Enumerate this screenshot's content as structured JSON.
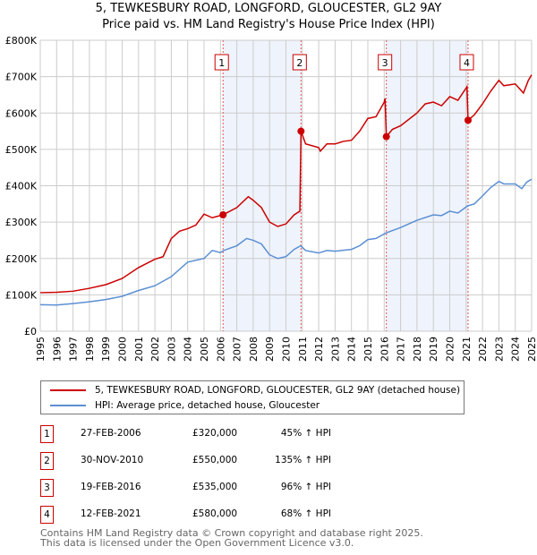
{
  "chart_data": {
    "type": "line",
    "title": "5, TEWKESBURY ROAD, LONGFORD, GLOUCESTER, GL2 9AY",
    "subtitle": "Price paid vs. HM Land Registry's House Price Index (HPI)",
    "xlim": [
      1995,
      2025
    ],
    "ylim": [
      0,
      800000
    ],
    "x_ticks": [
      "1995",
      "1996",
      "1997",
      "1998",
      "1999",
      "2000",
      "2001",
      "2002",
      "2003",
      "2004",
      "2005",
      "2006",
      "2007",
      "2008",
      "2009",
      "2010",
      "2011",
      "2012",
      "2013",
      "2014",
      "2015",
      "2016",
      "2017",
      "2018",
      "2019",
      "2020",
      "2021",
      "2022",
      "2023",
      "2024",
      "2025"
    ],
    "y_ticks": [
      {
        "v": 0,
        "l": "£0"
      },
      {
        "v": 100000,
        "l": "£100K"
      },
      {
        "v": 200000,
        "l": "£200K"
      },
      {
        "v": 300000,
        "l": "£300K"
      },
      {
        "v": 400000,
        "l": "£400K"
      },
      {
        "v": 500000,
        "l": "£500K"
      },
      {
        "v": 600000,
        "l": "£600K"
      },
      {
        "v": 700000,
        "l": "£700K"
      },
      {
        "v": 800000,
        "l": "£800K"
      }
    ],
    "grid": true,
    "series": [
      {
        "name": "5, TEWKESBURY ROAD, LONGFORD, GLOUCESTER, GL2 9AY (detached house)",
        "color": "#cc0000",
        "x": [
          1995,
          1996,
          1997,
          1998,
          1999,
          2000,
          2001,
          2002,
          2002.5,
          2003,
          2003.5,
          2004,
          2004.5,
          2005,
          2005.5,
          2006.15,
          2007,
          2007.7,
          2008,
          2008.5,
          2009,
          2009.5,
          2010,
          2010.5,
          2010.85,
          2010.92,
          2011.2,
          2012,
          2012.1,
          2012.5,
          2013,
          2013.5,
          2014,
          2014.5,
          2015,
          2015.5,
          2016.0,
          2016.05,
          2016.13,
          2016.5,
          2017,
          2018,
          2018.5,
          2019,
          2019.5,
          2020,
          2020.5,
          2021.05,
          2021.12,
          2021.5,
          2022,
          2022.5,
          2023,
          2023.3,
          2024,
          2024.5,
          2024.8,
          2025
        ],
        "y": [
          106000,
          107000,
          110000,
          118000,
          128000,
          145000,
          175000,
          198000,
          205000,
          255000,
          275000,
          282000,
          292000,
          322000,
          312000,
          320000,
          340000,
          370000,
          360000,
          340000,
          300000,
          288000,
          295000,
          320000,
          330000,
          550000,
          515000,
          505000,
          495000,
          515000,
          515000,
          522000,
          525000,
          550000,
          585000,
          590000,
          630000,
          640000,
          535000,
          555000,
          565000,
          600000,
          625000,
          630000,
          620000,
          645000,
          635000,
          672000,
          580000,
          595000,
          625000,
          660000,
          690000,
          675000,
          680000,
          655000,
          690000,
          705000
        ]
      },
      {
        "name": "HPI: Average price, detached house, Gloucester",
        "color": "#5b8fd4",
        "x": [
          1995,
          1996,
          1997,
          1998,
          1999,
          2000,
          2001,
          2002,
          2003,
          2004,
          2005,
          2005.5,
          2006,
          2006.2,
          2007,
          2007.6,
          2008,
          2008.5,
          2009,
          2009.5,
          2010,
          2010.5,
          2010.9,
          2011.2,
          2012,
          2012.5,
          2013,
          2014,
          2014.5,
          2015,
          2015.5,
          2016.1,
          2017,
          2018,
          2019,
          2019.5,
          2020,
          2020.5,
          2021.1,
          2021.5,
          2022,
          2022.5,
          2023,
          2023.3,
          2024,
          2024.4,
          2024.7,
          2025
        ],
        "y": [
          73000,
          72000,
          76000,
          81000,
          87000,
          96000,
          112000,
          125000,
          150000,
          190000,
          200000,
          222000,
          216000,
          222000,
          235000,
          255000,
          250000,
          240000,
          210000,
          200000,
          205000,
          225000,
          235000,
          222000,
          215000,
          222000,
          220000,
          225000,
          235000,
          252000,
          255000,
          270000,
          285000,
          305000,
          320000,
          318000,
          330000,
          325000,
          345000,
          350000,
          372000,
          395000,
          412000,
          405000,
          405000,
          392000,
          410000,
          418000
        ]
      }
    ],
    "sales": [
      {
        "label": "1",
        "x": 2006.16,
        "date": "27-FEB-2006",
        "price": 320000,
        "price_text": "£320,000",
        "hpi": "45% ↑ HPI"
      },
      {
        "label": "2",
        "x": 2010.92,
        "date": "30-NOV-2010",
        "price": 550000,
        "price_text": "£550,000",
        "hpi": "135% ↑ HPI"
      },
      {
        "label": "3",
        "x": 2016.13,
        "date": "19-FEB-2016",
        "price": 535000,
        "price_text": "£535,000",
        "hpi": "96% ↑ HPI"
      },
      {
        "label": "4",
        "x": 2021.12,
        "date": "12-FEB-2021",
        "price": 580000,
        "price_text": "£580,000",
        "hpi": "68% ↑ HPI"
      }
    ],
    "legend_position": "below"
  },
  "footer": [
    "Contains HM Land Registry data © Crown copyright and database right 2025.",
    "This data is licensed under the Open Government Licence v3.0."
  ]
}
